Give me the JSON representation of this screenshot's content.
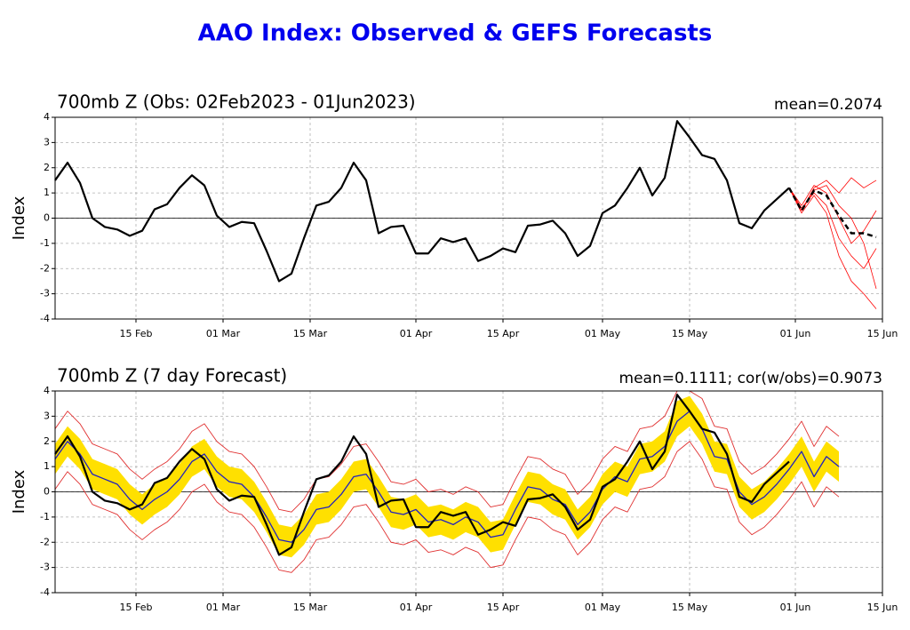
{
  "title": "AAO Index: Observed & GEFS Forecasts",
  "chart_data": [
    {
      "type": "line",
      "title": "700mb Z (Obs: 02Feb2023 - 01Jun2023)",
      "annotation": "mean=0.2074",
      "ylabel": "Index",
      "xlim": [
        "2023-02-02",
        "2023-06-15"
      ],
      "xticks": [
        {
          "value": "2023-02-15",
          "label": "15 Feb"
        },
        {
          "value": "2023-03-01",
          "label": "01 Mar"
        },
        {
          "value": "2023-03-15",
          "label": "15 Mar"
        },
        {
          "value": "2023-04-01",
          "label": "01 Apr"
        },
        {
          "value": "2023-04-15",
          "label": "15 Apr"
        },
        {
          "value": "2023-05-01",
          "label": "01 May"
        },
        {
          "value": "2023-05-15",
          "label": "15 May"
        },
        {
          "value": "2023-06-01",
          "label": "01 Jun"
        },
        {
          "value": "2023-06-15",
          "label": "15 Jun"
        }
      ],
      "ylim": [
        -4,
        4
      ],
      "yticks": [
        -4,
        -3,
        -2,
        -1,
        0,
        1,
        2,
        3,
        4
      ],
      "grid": true,
      "series": [
        {
          "color": "#ff0000",
          "width": 0.8,
          "x": [
            "2023-05-31",
            "2023-06-02",
            "2023-06-04",
            "2023-06-06",
            "2023-06-08",
            "2023-06-10",
            "2023-06-12",
            "2023-06-14"
          ],
          "values": [
            1.2,
            0.3,
            1.2,
            1.5,
            1.0,
            1.6,
            1.2,
            1.5
          ]
        },
        {
          "color": "#ff0000",
          "width": 0.8,
          "x": [
            "2023-05-31",
            "2023-06-02",
            "2023-06-04",
            "2023-06-06",
            "2023-06-08",
            "2023-06-10",
            "2023-06-12",
            "2023-06-14"
          ],
          "values": [
            1.2,
            0.2,
            0.9,
            0.2,
            -1.5,
            -2.5,
            -3.0,
            -3.6
          ]
        },
        {
          "color": "#ff0000",
          "width": 0.8,
          "x": [
            "2023-05-31",
            "2023-06-02",
            "2023-06-04",
            "2023-06-06",
            "2023-06-08",
            "2023-06-10",
            "2023-06-12",
            "2023-06-14"
          ],
          "values": [
            1.2,
            0.5,
            1.3,
            1.0,
            0.0,
            -1.0,
            -0.5,
            0.3
          ]
        },
        {
          "color": "#ff0000",
          "width": 0.8,
          "x": [
            "2023-05-31",
            "2023-06-02",
            "2023-06-04",
            "2023-06-06",
            "2023-06-08",
            "2023-06-10",
            "2023-06-12",
            "2023-06-14"
          ],
          "values": [
            1.2,
            0.4,
            1.0,
            0.5,
            -0.8,
            -1.5,
            -2.0,
            -1.2
          ]
        },
        {
          "color": "#ff0000",
          "width": 0.8,
          "x": [
            "2023-05-31",
            "2023-06-02",
            "2023-06-04",
            "2023-06-06",
            "2023-06-08",
            "2023-06-10",
            "2023-06-12",
            "2023-06-14"
          ],
          "values": [
            1.2,
            0.3,
            1.1,
            1.3,
            0.5,
            0.0,
            -1.0,
            -2.8
          ]
        },
        {
          "color": "#000000",
          "width": 2.5,
          "dash": true,
          "x": [
            "2023-05-31",
            "2023-06-02",
            "2023-06-04",
            "2023-06-06",
            "2023-06-08",
            "2023-06-10",
            "2023-06-12",
            "2023-06-14"
          ],
          "values": [
            1.2,
            0.3,
            1.1,
            0.9,
            0.1,
            -0.6,
            -0.6,
            -0.75
          ]
        },
        {
          "color": "#000000",
          "width": 2.2,
          "x": [
            "2023-02-02",
            "2023-02-04",
            "2023-02-06",
            "2023-02-08",
            "2023-02-10",
            "2023-02-12",
            "2023-02-14",
            "2023-02-16",
            "2023-02-18",
            "2023-02-20",
            "2023-02-22",
            "2023-02-24",
            "2023-02-26",
            "2023-02-28",
            "2023-03-02",
            "2023-03-04",
            "2023-03-06",
            "2023-03-08",
            "2023-03-10",
            "2023-03-12",
            "2023-03-14",
            "2023-03-16",
            "2023-03-18",
            "2023-03-20",
            "2023-03-22",
            "2023-03-24",
            "2023-03-26",
            "2023-03-28",
            "2023-03-30",
            "2023-04-01",
            "2023-04-03",
            "2023-04-05",
            "2023-04-07",
            "2023-04-09",
            "2023-04-11",
            "2023-04-13",
            "2023-04-15",
            "2023-04-17",
            "2023-04-19",
            "2023-04-21",
            "2023-04-23",
            "2023-04-25",
            "2023-04-27",
            "2023-04-29",
            "2023-05-01",
            "2023-05-03",
            "2023-05-05",
            "2023-05-07",
            "2023-05-09",
            "2023-05-11",
            "2023-05-13",
            "2023-05-15",
            "2023-05-17",
            "2023-05-19",
            "2023-05-21",
            "2023-05-23",
            "2023-05-25",
            "2023-05-27",
            "2023-05-29",
            "2023-05-31"
          ],
          "values": [
            1.5,
            2.2,
            1.4,
            0.0,
            -0.35,
            -0.45,
            -0.7,
            -0.5,
            0.35,
            0.55,
            1.2,
            1.7,
            1.3,
            0.1,
            -0.35,
            -0.15,
            -0.2,
            -1.3,
            -2.5,
            -2.2,
            -0.8,
            0.5,
            0.65,
            1.2,
            2.2,
            1.5,
            -0.6,
            -0.35,
            -0.3,
            -1.4,
            -1.4,
            -0.8,
            -0.95,
            -0.8,
            -1.7,
            -1.5,
            -1.2,
            -1.35,
            -0.3,
            -0.25,
            -0.1,
            -0.6,
            -1.5,
            -1.1,
            0.2,
            0.5,
            1.2,
            2.0,
            0.9,
            1.6,
            3.85,
            3.2,
            2.5,
            2.35,
            1.5,
            -0.2,
            -0.4,
            0.3,
            0.75,
            1.2
          ]
        }
      ]
    },
    {
      "type": "line",
      "title": "700mb Z (7 day Forecast)",
      "annotation": "mean=0.1111; cor(w/obs)=0.9073",
      "ylabel": "Index",
      "xlim": [
        "2023-02-02",
        "2023-06-15"
      ],
      "xticks": [
        {
          "value": "2023-02-15",
          "label": "15 Feb"
        },
        {
          "value": "2023-03-01",
          "label": "01 Mar"
        },
        {
          "value": "2023-03-15",
          "label": "15 Mar"
        },
        {
          "value": "2023-04-01",
          "label": "01 Apr"
        },
        {
          "value": "2023-04-15",
          "label": "15 Apr"
        },
        {
          "value": "2023-05-01",
          "label": "01 May"
        },
        {
          "value": "2023-05-15",
          "label": "15 May"
        },
        {
          "value": "2023-06-01",
          "label": "01 Jun"
        },
        {
          "value": "2023-06-15",
          "label": "15 Jun"
        }
      ],
      "ylim": [
        -4,
        4
      ],
      "yticks": [
        -4,
        -3,
        -2,
        -1,
        0,
        1,
        2,
        3,
        4
      ],
      "grid": true,
      "x": [
        "2023-02-02",
        "2023-02-04",
        "2023-02-06",
        "2023-02-08",
        "2023-02-10",
        "2023-02-12",
        "2023-02-14",
        "2023-02-16",
        "2023-02-18",
        "2023-02-20",
        "2023-02-22",
        "2023-02-24",
        "2023-02-26",
        "2023-02-28",
        "2023-03-02",
        "2023-03-04",
        "2023-03-06",
        "2023-03-08",
        "2023-03-10",
        "2023-03-12",
        "2023-03-14",
        "2023-03-16",
        "2023-03-18",
        "2023-03-20",
        "2023-03-22",
        "2023-03-24",
        "2023-03-26",
        "2023-03-28",
        "2023-03-30",
        "2023-04-01",
        "2023-04-03",
        "2023-04-05",
        "2023-04-07",
        "2023-04-09",
        "2023-04-11",
        "2023-04-13",
        "2023-04-15",
        "2023-04-17",
        "2023-04-19",
        "2023-04-21",
        "2023-04-23",
        "2023-04-25",
        "2023-04-27",
        "2023-04-29",
        "2023-05-01",
        "2023-05-03",
        "2023-05-05",
        "2023-05-07",
        "2023-05-09",
        "2023-05-11",
        "2023-05-13",
        "2023-05-15",
        "2023-05-17",
        "2023-05-19",
        "2023-05-21",
        "2023-05-23",
        "2023-05-25",
        "2023-05-27",
        "2023-05-29",
        "2023-05-31",
        "2023-06-02",
        "2023-06-04",
        "2023-06-06",
        "2023-06-08"
      ],
      "bands": [
        {
          "color": "#ffe000",
          "lower": [
            0.7,
            1.4,
            0.9,
            0.1,
            -0.1,
            -0.3,
            -0.9,
            -1.3,
            -0.9,
            -0.6,
            -0.1,
            0.6,
            0.9,
            0.2,
            -0.2,
            -0.3,
            -0.8,
            -1.6,
            -2.5,
            -2.6,
            -2.1,
            -1.3,
            -1.2,
            -0.7,
            0.0,
            0.1,
            -0.6,
            -1.4,
            -1.5,
            -1.3,
            -1.8,
            -1.7,
            -1.9,
            -1.6,
            -1.8,
            -2.4,
            -2.3,
            -1.3,
            -0.4,
            -0.5,
            -0.9,
            -1.1,
            -1.9,
            -1.4,
            -0.5,
            0.0,
            -0.2,
            0.7,
            0.8,
            1.2,
            2.2,
            2.6,
            1.9,
            0.8,
            0.7,
            -0.6,
            -1.1,
            -0.8,
            -0.3,
            0.3,
            1.0,
            0.0,
            0.8,
            0.4
          ],
          "upper": [
            1.9,
            2.6,
            2.1,
            1.3,
            1.1,
            0.9,
            0.3,
            -0.1,
            0.3,
            0.6,
            1.1,
            1.8,
            2.1,
            1.4,
            1.0,
            0.9,
            0.4,
            -0.4,
            -1.3,
            -1.4,
            -0.9,
            -0.1,
            0.0,
            0.5,
            1.2,
            1.3,
            0.6,
            -0.2,
            -0.3,
            -0.1,
            -0.6,
            -0.5,
            -0.7,
            -0.4,
            -0.6,
            -1.2,
            -1.1,
            -0.1,
            0.8,
            0.7,
            0.3,
            0.1,
            -0.7,
            -0.2,
            0.7,
            1.2,
            1.0,
            1.9,
            2.0,
            2.4,
            3.6,
            3.8,
            3.1,
            2.0,
            1.9,
            0.6,
            0.1,
            0.4,
            0.9,
            1.5,
            2.2,
            1.2,
            2.0,
            1.6
          ]
        }
      ],
      "series": [
        {
          "color": "#e03030",
          "width": 0.9,
          "values": [
            2.5,
            3.2,
            2.7,
            1.9,
            1.7,
            1.5,
            0.9,
            0.5,
            0.9,
            1.2,
            1.7,
            2.4,
            2.7,
            2.0,
            1.6,
            1.5,
            1.0,
            0.2,
            -0.7,
            -0.8,
            -0.3,
            0.5,
            0.6,
            1.1,
            1.8,
            1.9,
            1.2,
            0.4,
            0.3,
            0.5,
            0.0,
            0.1,
            -0.1,
            0.2,
            0.0,
            -0.6,
            -0.5,
            0.5,
            1.4,
            1.3,
            0.9,
            0.7,
            -0.1,
            0.4,
            1.3,
            1.8,
            1.6,
            2.5,
            2.6,
            3.0,
            4.0,
            4.0,
            3.7,
            2.6,
            2.5,
            1.2,
            0.7,
            1.0,
            1.5,
            2.1,
            2.8,
            1.8,
            2.6,
            2.2
          ]
        },
        {
          "color": "#e03030",
          "width": 0.9,
          "values": [
            0.1,
            0.8,
            0.3,
            -0.5,
            -0.7,
            -0.9,
            -1.5,
            -1.9,
            -1.5,
            -1.2,
            -0.7,
            0.0,
            0.3,
            -0.4,
            -0.8,
            -0.9,
            -1.4,
            -2.2,
            -3.1,
            -3.2,
            -2.7,
            -1.9,
            -1.8,
            -1.3,
            -0.6,
            -0.5,
            -1.2,
            -2.0,
            -2.1,
            -1.9,
            -2.4,
            -2.3,
            -2.5,
            -2.2,
            -2.4,
            -3.0,
            -2.9,
            -1.9,
            -1.0,
            -1.1,
            -1.5,
            -1.7,
            -2.5,
            -2.0,
            -1.1,
            -0.6,
            -0.8,
            0.1,
            0.2,
            0.6,
            1.6,
            2.0,
            1.3,
            0.2,
            0.1,
            -1.2,
            -1.7,
            -1.4,
            -0.9,
            -0.3,
            0.4,
            -0.6,
            0.2,
            -0.2
          ]
        },
        {
          "color": "#2020c0",
          "width": 1.3,
          "values": [
            1.3,
            2.0,
            1.5,
            0.7,
            0.5,
            0.3,
            -0.3,
            -0.7,
            -0.3,
            0.0,
            0.5,
            1.2,
            1.5,
            0.8,
            0.4,
            0.3,
            -0.2,
            -1.0,
            -1.9,
            -2.0,
            -1.5,
            -0.7,
            -0.6,
            -0.1,
            0.6,
            0.7,
            0.0,
            -0.8,
            -0.9,
            -0.7,
            -1.2,
            -1.1,
            -1.3,
            -1.0,
            -1.2,
            -1.8,
            -1.7,
            -0.7,
            0.2,
            0.1,
            -0.3,
            -0.5,
            -1.3,
            -0.8,
            0.1,
            0.6,
            0.4,
            1.3,
            1.4,
            1.8,
            2.8,
            3.2,
            2.5,
            1.4,
            1.3,
            0.0,
            -0.5,
            -0.2,
            0.3,
            0.9,
            1.6,
            0.6,
            1.4,
            1.0
          ]
        },
        {
          "color": "#000000",
          "width": 2.2,
          "values": [
            1.5,
            2.2,
            1.4,
            0.0,
            -0.35,
            -0.45,
            -0.7,
            -0.5,
            0.35,
            0.55,
            1.2,
            1.7,
            1.3,
            0.1,
            -0.35,
            -0.15,
            -0.2,
            -1.3,
            -2.5,
            -2.2,
            -0.8,
            0.5,
            0.65,
            1.2,
            2.2,
            1.5,
            -0.6,
            -0.35,
            -0.3,
            -1.4,
            -1.4,
            -0.8,
            -0.95,
            -0.8,
            -1.7,
            -1.5,
            -1.2,
            -1.35,
            -0.3,
            -0.25,
            -0.1,
            -0.6,
            -1.5,
            -1.1,
            0.2,
            0.5,
            1.2,
            2.0,
            0.9,
            1.6,
            3.85,
            3.2,
            2.5,
            2.35,
            1.5,
            -0.2,
            -0.4,
            0.3,
            0.75,
            1.2,
            null,
            null,
            null,
            null
          ]
        }
      ]
    }
  ]
}
